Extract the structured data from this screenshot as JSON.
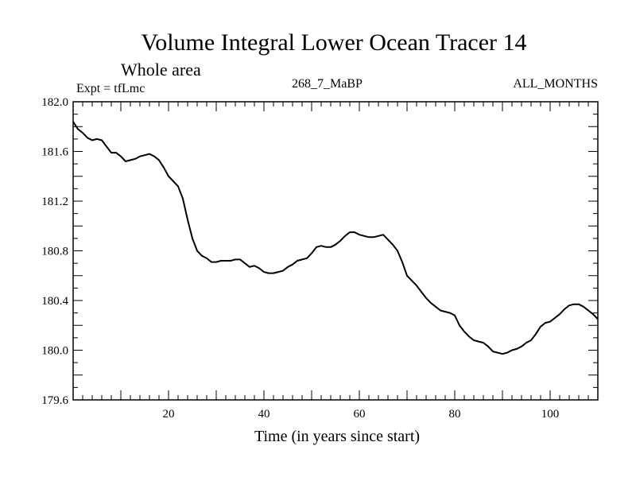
{
  "header": {
    "title": "Volume Integral Lower Ocean Tracer 14",
    "subtitle": "Whole area",
    "expt": "Expt = tfLmc",
    "run": "268_7_MaBP",
    "months": "ALL_MONTHS"
  },
  "chart_data": {
    "type": "line",
    "title": "Volume Integral Lower Ocean Tracer 14",
    "subtitle": "Whole area",
    "xlabel": "Time (in years since start)",
    "ylabel": "",
    "xlim": [
      0,
      110
    ],
    "ylim": [
      179.6,
      182.0
    ],
    "x_ticks": [
      20,
      40,
      60,
      80,
      100
    ],
    "y_ticks": [
      179.6,
      180.0,
      180.4,
      180.8,
      181.2,
      181.6,
      182.0
    ],
    "y_tick_labels": [
      "179.6",
      "180.0",
      "180.4",
      "180.8",
      "181.2",
      "181.6",
      "182.0"
    ],
    "series": [
      {
        "name": "Lower Ocean Tracer 14",
        "x": [
          0,
          1,
          2,
          3,
          4,
          5,
          6,
          7,
          8,
          9,
          10,
          11,
          12,
          13,
          14,
          15,
          16,
          17,
          18,
          19,
          20,
          21,
          22,
          23,
          24,
          25,
          26,
          27,
          28,
          29,
          30,
          31,
          32,
          33,
          34,
          35,
          36,
          37,
          38,
          39,
          40,
          41,
          42,
          43,
          44,
          45,
          46,
          47,
          48,
          49,
          50,
          51,
          52,
          53,
          54,
          55,
          56,
          57,
          58,
          59,
          60,
          61,
          62,
          63,
          64,
          65,
          66,
          67,
          68,
          69,
          70,
          71,
          72,
          73,
          74,
          75,
          76,
          77,
          78,
          79,
          80,
          81,
          82,
          83,
          84,
          85,
          86,
          87,
          88,
          89,
          90,
          91,
          92,
          93,
          94,
          95,
          96,
          97,
          98,
          99,
          100,
          101,
          102,
          103,
          104,
          105,
          106,
          107,
          108,
          109,
          110
        ],
        "y": [
          181.84,
          181.78,
          181.75,
          181.71,
          181.69,
          181.7,
          181.69,
          181.64,
          181.59,
          181.59,
          181.56,
          181.52,
          181.53,
          181.54,
          181.56,
          181.57,
          181.58,
          181.56,
          181.53,
          181.47,
          181.4,
          181.36,
          181.32,
          181.22,
          181.05,
          180.9,
          180.8,
          180.76,
          180.74,
          180.71,
          180.71,
          180.72,
          180.72,
          180.72,
          180.73,
          180.73,
          180.7,
          180.67,
          180.68,
          180.66,
          180.63,
          180.62,
          180.62,
          180.63,
          180.64,
          180.67,
          180.69,
          180.72,
          180.73,
          180.74,
          180.78,
          180.83,
          180.84,
          180.83,
          180.83,
          180.85,
          180.88,
          180.92,
          180.95,
          180.95,
          180.93,
          180.92,
          180.91,
          180.91,
          180.92,
          180.93,
          180.89,
          180.85,
          180.8,
          180.71,
          180.6,
          180.56,
          180.52,
          180.47,
          180.42,
          180.38,
          180.35,
          180.32,
          180.31,
          180.3,
          180.28,
          180.2,
          180.15,
          180.11,
          180.08,
          180.07,
          180.06,
          180.03,
          179.99,
          179.98,
          179.97,
          179.98,
          180.0,
          180.01,
          180.03,
          180.06,
          180.08,
          180.13,
          180.19,
          180.22,
          180.23,
          180.26,
          180.29,
          180.33,
          180.36,
          180.37,
          180.37,
          180.35,
          180.32,
          180.29,
          180.25
        ]
      }
    ]
  }
}
